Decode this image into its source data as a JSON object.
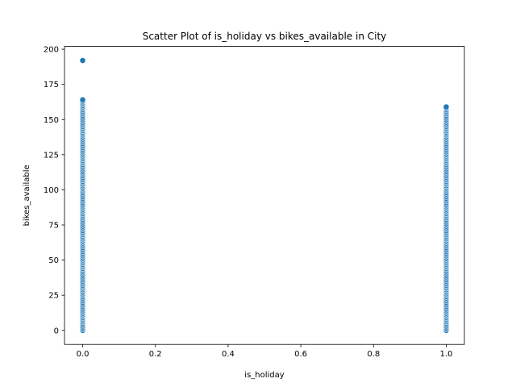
{
  "chart_data": {
    "type": "scatter",
    "title": "Scatter Plot of is_holiday vs bikes_available in City",
    "xlabel": "is_holiday",
    "ylabel": "bikes_available",
    "xlim": [
      -0.05,
      1.05
    ],
    "ylim": [
      -10,
      202
    ],
    "x_ticks": [
      0.0,
      0.2,
      0.4,
      0.6,
      0.8,
      1.0
    ],
    "x_tick_labels": [
      "0.0",
      "0.2",
      "0.4",
      "0.6",
      "0.8",
      "1.0"
    ],
    "y_ticks": [
      0,
      25,
      50,
      75,
      100,
      125,
      150,
      175,
      200
    ],
    "y_tick_labels": [
      "0",
      "25",
      "50",
      "75",
      "100",
      "125",
      "150",
      "175",
      "200"
    ],
    "grid": false,
    "marker_color": "#1f77b4",
    "series": [
      {
        "x": 0,
        "values": [
          0,
          1,
          2,
          3,
          4,
          5,
          6,
          7,
          8,
          9,
          10,
          11,
          12,
          13,
          14,
          15,
          16,
          17,
          18,
          19,
          20,
          21,
          22,
          23,
          24,
          25,
          26,
          27,
          28,
          29,
          30,
          31,
          32,
          33,
          34,
          35,
          36,
          37,
          38,
          39,
          40,
          41,
          42,
          43,
          44,
          45,
          46,
          47,
          48,
          49,
          50,
          51,
          52,
          53,
          54,
          55,
          56,
          57,
          58,
          59,
          60,
          61,
          62,
          63,
          64,
          65,
          66,
          67,
          68,
          69,
          70,
          71,
          72,
          73,
          74,
          75,
          76,
          77,
          78,
          79,
          80,
          81,
          82,
          83,
          84,
          85,
          86,
          87,
          88,
          89,
          90,
          91,
          92,
          93,
          94,
          95,
          96,
          97,
          98,
          99,
          100,
          101,
          102,
          103,
          104,
          105,
          106,
          107,
          108,
          109,
          110,
          111,
          112,
          113,
          114,
          115,
          116,
          117,
          118,
          119,
          120,
          121,
          122,
          123,
          124,
          125,
          126,
          127,
          128,
          129,
          130,
          131,
          132,
          133,
          134,
          135,
          136,
          137,
          138,
          139,
          140,
          141,
          142,
          143,
          144,
          145,
          146,
          147,
          148,
          149,
          150,
          151,
          152,
          153,
          154,
          155,
          156,
          157,
          158,
          159,
          160,
          161,
          162,
          163,
          164,
          192
        ]
      },
      {
        "x": 1,
        "values": [
          0,
          1,
          2,
          3,
          4,
          5,
          6,
          7,
          8,
          9,
          10,
          11,
          12,
          13,
          14,
          15,
          16,
          17,
          18,
          19,
          20,
          21,
          22,
          23,
          24,
          25,
          26,
          27,
          28,
          29,
          30,
          31,
          32,
          33,
          34,
          35,
          36,
          37,
          38,
          39,
          40,
          41,
          42,
          43,
          44,
          45,
          46,
          47,
          48,
          49,
          50,
          51,
          52,
          53,
          54,
          55,
          56,
          57,
          58,
          59,
          60,
          61,
          62,
          63,
          64,
          65,
          66,
          67,
          68,
          69,
          70,
          71,
          72,
          73,
          74,
          75,
          76,
          77,
          78,
          79,
          80,
          81,
          82,
          83,
          84,
          85,
          86,
          87,
          88,
          89,
          90,
          91,
          92,
          93,
          94,
          95,
          96,
          97,
          98,
          99,
          100,
          101,
          102,
          103,
          104,
          105,
          106,
          107,
          108,
          109,
          110,
          111,
          112,
          113,
          114,
          115,
          116,
          117,
          118,
          119,
          120,
          121,
          122,
          123,
          124,
          125,
          126,
          127,
          128,
          129,
          130,
          131,
          132,
          133,
          134,
          135,
          136,
          137,
          138,
          139,
          140,
          141,
          142,
          143,
          144,
          145,
          146,
          147,
          148,
          149,
          150,
          151,
          152,
          153,
          154,
          155,
          156,
          157,
          158,
          159
        ]
      }
    ]
  }
}
